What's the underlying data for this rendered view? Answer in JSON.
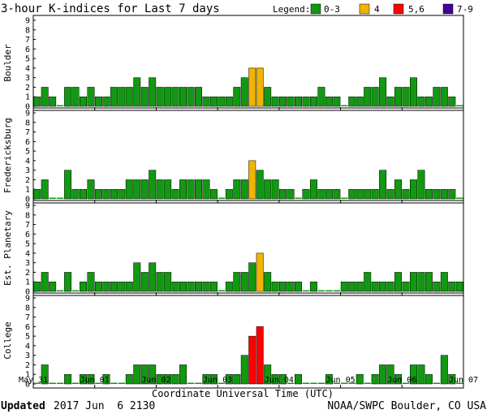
{
  "chart_data": {
    "type": "bar",
    "title": "3-hour K-indices for Last 7 days",
    "legend": {
      "title": "Legend:",
      "placement": "top-right",
      "items": [
        {
          "label": "0-3",
          "color": "#119911"
        },
        {
          "label": "4",
          "color": "#f0b400"
        },
        {
          "label": "5,6",
          "color": "#ff0000"
        },
        {
          "label": "7-9",
          "color": "#440099"
        }
      ]
    },
    "colors": {
      "low": "#119911",
      "mid": "#f0b400",
      "high": "#ff0000",
      "severe": "#440099"
    },
    "ylim": [
      0,
      9
    ],
    "yticks": [
      "0",
      "1",
      "2",
      "3",
      "4",
      "5",
      "6",
      "7",
      "8",
      "9"
    ],
    "xticks": [
      "May 31",
      "Jun 01",
      "Jun 02",
      "Jun 03",
      "Jun 04",
      "Jun 05",
      "Jun 06",
      "Jun 07"
    ],
    "xlabel": "Coordinate Universal Time (UTC)",
    "grid": false,
    "panels": [
      {
        "name": "Boulder",
        "values": [
          1,
          2,
          1,
          0,
          2,
          2,
          1,
          2,
          1,
          1,
          2,
          2,
          2,
          3,
          2,
          3,
          2,
          2,
          2,
          2,
          2,
          2,
          1,
          1,
          1,
          1,
          2,
          3,
          4,
          4,
          2,
          1,
          1,
          1,
          1,
          1,
          1,
          2,
          1,
          1,
          0,
          1,
          1,
          2,
          2,
          3,
          1,
          2,
          2,
          3,
          1,
          1,
          2,
          2,
          1,
          0
        ]
      },
      {
        "name": "Fredericksburg",
        "values": [
          1,
          2,
          0,
          0,
          3,
          1,
          1,
          2,
          1,
          1,
          1,
          1,
          2,
          2,
          2,
          3,
          2,
          2,
          1,
          2,
          2,
          2,
          2,
          1,
          0,
          1,
          2,
          2,
          4,
          3,
          2,
          2,
          1,
          1,
          0,
          1,
          2,
          1,
          1,
          1,
          0,
          1,
          1,
          1,
          1,
          3,
          1,
          2,
          1,
          2,
          3,
          1,
          1,
          1,
          1,
          0
        ]
      },
      {
        "name": "Est. Planetary",
        "values": [
          1,
          2,
          1,
          0,
          2,
          0,
          1,
          2,
          1,
          1,
          1,
          1,
          1,
          3,
          2,
          3,
          2,
          2,
          1,
          1,
          1,
          1,
          1,
          1,
          0,
          1,
          2,
          2,
          3,
          4,
          2,
          1,
          1,
          1,
          1,
          0,
          1,
          0,
          0,
          0,
          1,
          1,
          1,
          2,
          1,
          1,
          1,
          2,
          1,
          2,
          2,
          2,
          1,
          2,
          1,
          1
        ]
      },
      {
        "name": "College",
        "values": [
          0,
          2,
          0,
          0,
          1,
          0,
          1,
          1,
          0,
          1,
          0,
          0,
          1,
          2,
          2,
          2,
          1,
          1,
          1,
          2,
          0,
          0,
          1,
          1,
          0,
          1,
          1,
          3,
          5,
          6,
          2,
          1,
          1,
          0,
          1,
          0,
          0,
          0,
          1,
          0,
          0,
          0,
          1,
          0,
          1,
          2,
          2,
          1,
          0,
          2,
          2,
          1,
          0,
          3,
          1,
          0
        ]
      }
    ]
  },
  "footer": {
    "updated_label": "Updated",
    "updated_value": "2017 Jun  6 2130",
    "credit": "NOAA/SWPC Boulder, CO USA"
  }
}
